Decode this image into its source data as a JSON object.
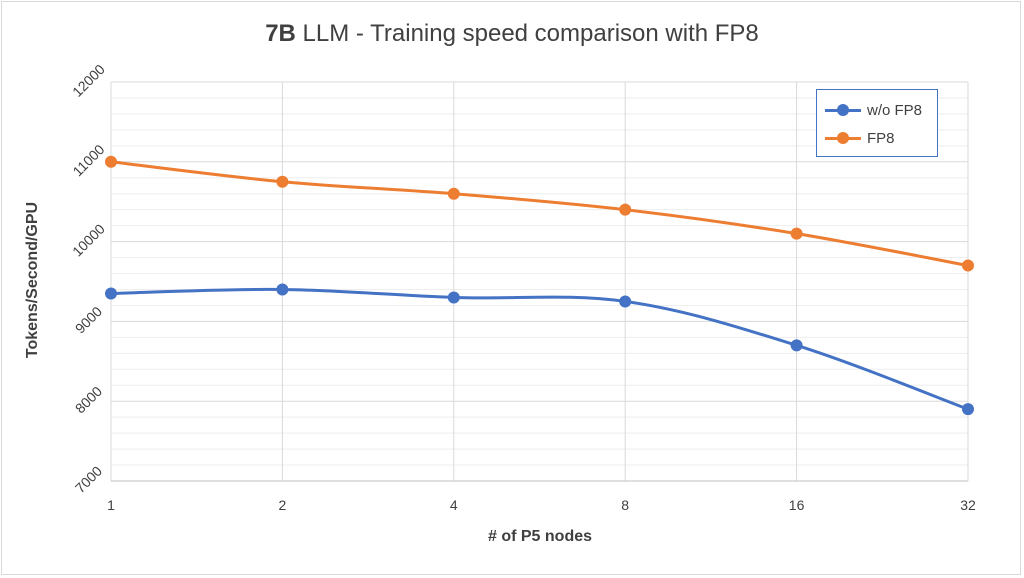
{
  "chart_data": {
    "type": "line",
    "title_bold": "7B",
    "title_rest": " LLM - Training speed comparison with FP8",
    "xlabel": "# of P5 nodes",
    "ylabel": "Tokens/Second/GPU",
    "categories": [
      "1",
      "2",
      "4",
      "8",
      "16",
      "32"
    ],
    "ylim": [
      7000,
      12000
    ],
    "yticks": [
      "7000",
      "8000",
      "9000",
      "10000",
      "11000",
      "12000"
    ],
    "grid": true,
    "legend_position": "top-right",
    "series": [
      {
        "name": "w/o FP8",
        "color": "#4472c4",
        "values": [
          9350,
          9400,
          9300,
          9250,
          8700,
          7900
        ]
      },
      {
        "name": "FP8",
        "color": "#ed7d31",
        "values": [
          11000,
          10750,
          10600,
          10400,
          10100,
          9700
        ]
      }
    ]
  }
}
